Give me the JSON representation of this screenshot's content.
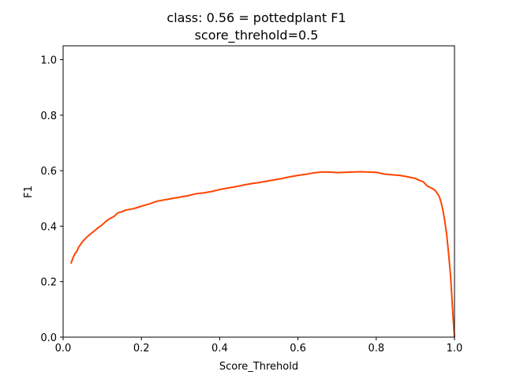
{
  "chart_data": {
    "type": "line",
    "title": "class: 0.56 = pottedplant F1",
    "subtitle": "score_threhold=0.5",
    "xlabel": "Score_Threhold",
    "ylabel": "F1",
    "xlim": [
      0.0,
      1.0
    ],
    "ylim": [
      0.0,
      1.05
    ],
    "x_ticks": [
      0.0,
      0.2,
      0.4,
      0.6,
      0.8,
      1.0
    ],
    "x_tick_labels": [
      "0.0",
      "0.2",
      "0.4",
      "0.6",
      "0.8",
      "1.0"
    ],
    "y_ticks": [
      0.0,
      0.2,
      0.4,
      0.6,
      0.8,
      1.0
    ],
    "y_tick_labels": [
      "0.0",
      "0.2",
      "0.4",
      "0.6",
      "0.8",
      "1.0"
    ],
    "grid": false,
    "series": [
      {
        "color": "#ff4500",
        "x": [
          0.02,
          0.025,
          0.03,
          0.035,
          0.04,
          0.05,
          0.06,
          0.07,
          0.08,
          0.09,
          0.1,
          0.11,
          0.12,
          0.13,
          0.14,
          0.15,
          0.16,
          0.18,
          0.2,
          0.22,
          0.24,
          0.26,
          0.28,
          0.3,
          0.32,
          0.34,
          0.36,
          0.38,
          0.4,
          0.42,
          0.44,
          0.46,
          0.48,
          0.5,
          0.52,
          0.54,
          0.56,
          0.58,
          0.6,
          0.62,
          0.64,
          0.66,
          0.68,
          0.7,
          0.72,
          0.74,
          0.76,
          0.78,
          0.8,
          0.82,
          0.84,
          0.86,
          0.88,
          0.9,
          0.91,
          0.92,
          0.93,
          0.94,
          0.95,
          0.96,
          0.965,
          0.97,
          0.975,
          0.98,
          0.985,
          0.99,
          0.993,
          0.996,
          0.998,
          1.0
        ],
        "y": [
          0.265,
          0.285,
          0.3,
          0.31,
          0.325,
          0.345,
          0.36,
          0.372,
          0.383,
          0.395,
          0.405,
          0.418,
          0.428,
          0.435,
          0.448,
          0.452,
          0.458,
          0.463,
          0.472,
          0.48,
          0.49,
          0.495,
          0.5,
          0.505,
          0.51,
          0.517,
          0.52,
          0.525,
          0.532,
          0.537,
          0.542,
          0.548,
          0.553,
          0.557,
          0.562,
          0.567,
          0.572,
          0.578,
          0.583,
          0.587,
          0.592,
          0.595,
          0.595,
          0.593,
          0.594,
          0.595,
          0.596,
          0.595,
          0.594,
          0.588,
          0.585,
          0.583,
          0.578,
          0.572,
          0.565,
          0.56,
          0.545,
          0.538,
          0.53,
          0.51,
          0.49,
          0.46,
          0.42,
          0.37,
          0.3,
          0.22,
          0.15,
          0.08,
          0.04,
          0.0
        ]
      }
    ]
  }
}
